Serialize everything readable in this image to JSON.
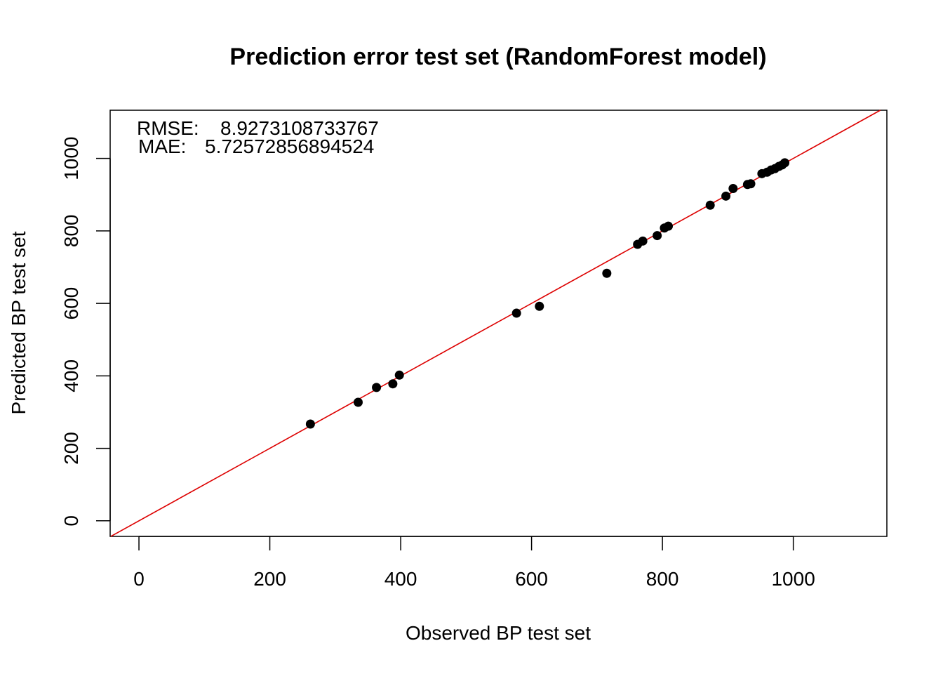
{
  "chart_data": {
    "type": "scatter",
    "title": "Prediction error test set (RandomForest model)",
    "xlabel": "Observed BP test set",
    "ylabel": "Predicted BP test set",
    "xlim": [
      -44,
      1143
    ],
    "ylim": [
      -43,
      1133
    ],
    "xticks": [
      0,
      200,
      400,
      600,
      800,
      1000
    ],
    "yticks": [
      0,
      200,
      400,
      600,
      800,
      1000
    ],
    "tick_labels_x": [
      "0",
      "200",
      "400",
      "600",
      "800",
      "1000"
    ],
    "tick_labels_y": [
      "0",
      "200",
      "400",
      "600",
      "800",
      "1000"
    ],
    "annotations": {
      "rmse_label": "RMSE:",
      "rmse_value": "8.9273108733767",
      "mae_label": "MAE:",
      "mae_value": "5.72572856894524"
    },
    "reference_line": {
      "slope": 1,
      "intercept": 0,
      "color": "#dd0000"
    },
    "point_color": "#000000",
    "grid": false,
    "points": [
      {
        "x": 262,
        "y": 267
      },
      {
        "x": 335,
        "y": 327
      },
      {
        "x": 363,
        "y": 368
      },
      {
        "x": 388,
        "y": 378
      },
      {
        "x": 398,
        "y": 402
      },
      {
        "x": 577,
        "y": 573
      },
      {
        "x": 612,
        "y": 592
      },
      {
        "x": 715,
        "y": 683
      },
      {
        "x": 762,
        "y": 763
      },
      {
        "x": 770,
        "y": 772
      },
      {
        "x": 792,
        "y": 787
      },
      {
        "x": 803,
        "y": 808
      },
      {
        "x": 809,
        "y": 813
      },
      {
        "x": 873,
        "y": 871
      },
      {
        "x": 897,
        "y": 896
      },
      {
        "x": 908,
        "y": 917
      },
      {
        "x": 930,
        "y": 928
      },
      {
        "x": 935,
        "y": 930
      },
      {
        "x": 952,
        "y": 958
      },
      {
        "x": 960,
        "y": 962
      },
      {
        "x": 966,
        "y": 968
      },
      {
        "x": 972,
        "y": 972
      },
      {
        "x": 978,
        "y": 978
      },
      {
        "x": 983,
        "y": 982
      },
      {
        "x": 987,
        "y": 988
      }
    ]
  }
}
